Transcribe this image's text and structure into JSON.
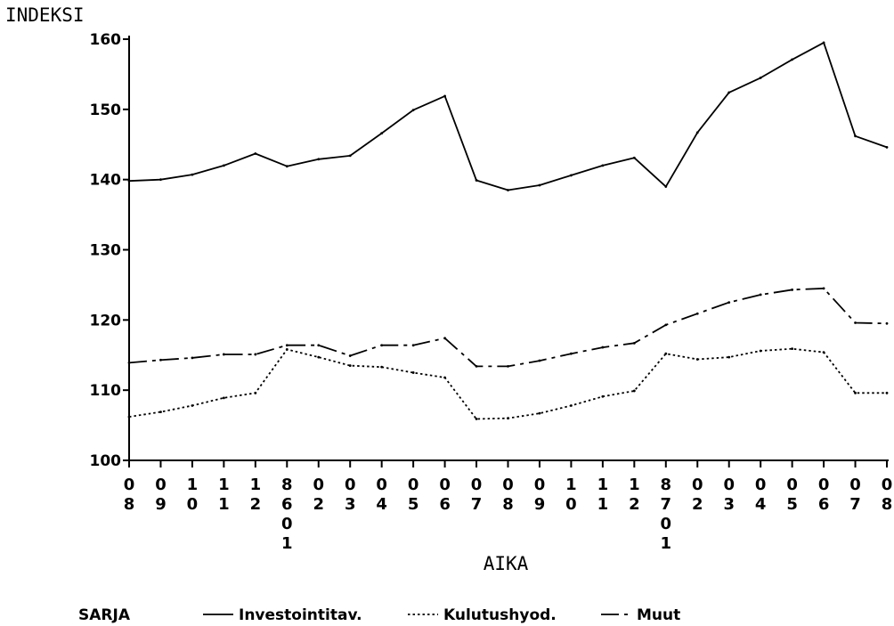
{
  "chart_data": {
    "type": "line",
    "ylabel": "INDEKSI",
    "xlabel": "AIKA",
    "ylim": [
      100,
      160
    ],
    "yticks": [
      100,
      110,
      120,
      130,
      140,
      150,
      160
    ],
    "categories": [
      "08",
      "09",
      "10",
      "11",
      "12",
      "8601",
      "02",
      "03",
      "04",
      "05",
      "06",
      "07",
      "08",
      "09",
      "10",
      "11",
      "12",
      "8701",
      "02",
      "03",
      "04",
      "05",
      "06",
      "07",
      "08"
    ],
    "legend_title": "SARJA",
    "legend_position": "bottom",
    "grid": false,
    "series": [
      {
        "name": "Investointitav.",
        "style": "solid",
        "values": [
          139.8,
          140.0,
          140.7,
          142.0,
          143.7,
          141.9,
          142.9,
          143.4,
          146.6,
          149.9,
          151.9,
          139.9,
          138.5,
          139.2,
          140.6,
          142.0,
          143.1,
          139.0,
          146.7,
          152.4,
          154.5,
          157.1,
          159.5,
          146.2,
          144.6
        ]
      },
      {
        "name": "Kulutushyod.",
        "style": "dotted",
        "values": [
          106.2,
          106.9,
          107.8,
          108.9,
          109.6,
          115.8,
          114.7,
          113.5,
          113.3,
          112.5,
          111.8,
          105.9,
          106.0,
          106.7,
          107.8,
          109.1,
          109.9,
          115.2,
          114.4,
          114.7,
          115.6,
          115.9,
          115.4,
          109.6,
          109.6
        ]
      },
      {
        "name": "Muut",
        "style": "dashdot",
        "values": [
          113.9,
          114.3,
          114.6,
          115.1,
          115.1,
          116.4,
          116.4,
          114.9,
          116.4,
          116.4,
          117.4,
          113.4,
          113.4,
          114.2,
          115.2,
          116.1,
          116.7,
          119.3,
          120.9,
          122.5,
          123.6,
          124.3,
          124.5,
          119.6,
          119.5
        ]
      }
    ]
  }
}
